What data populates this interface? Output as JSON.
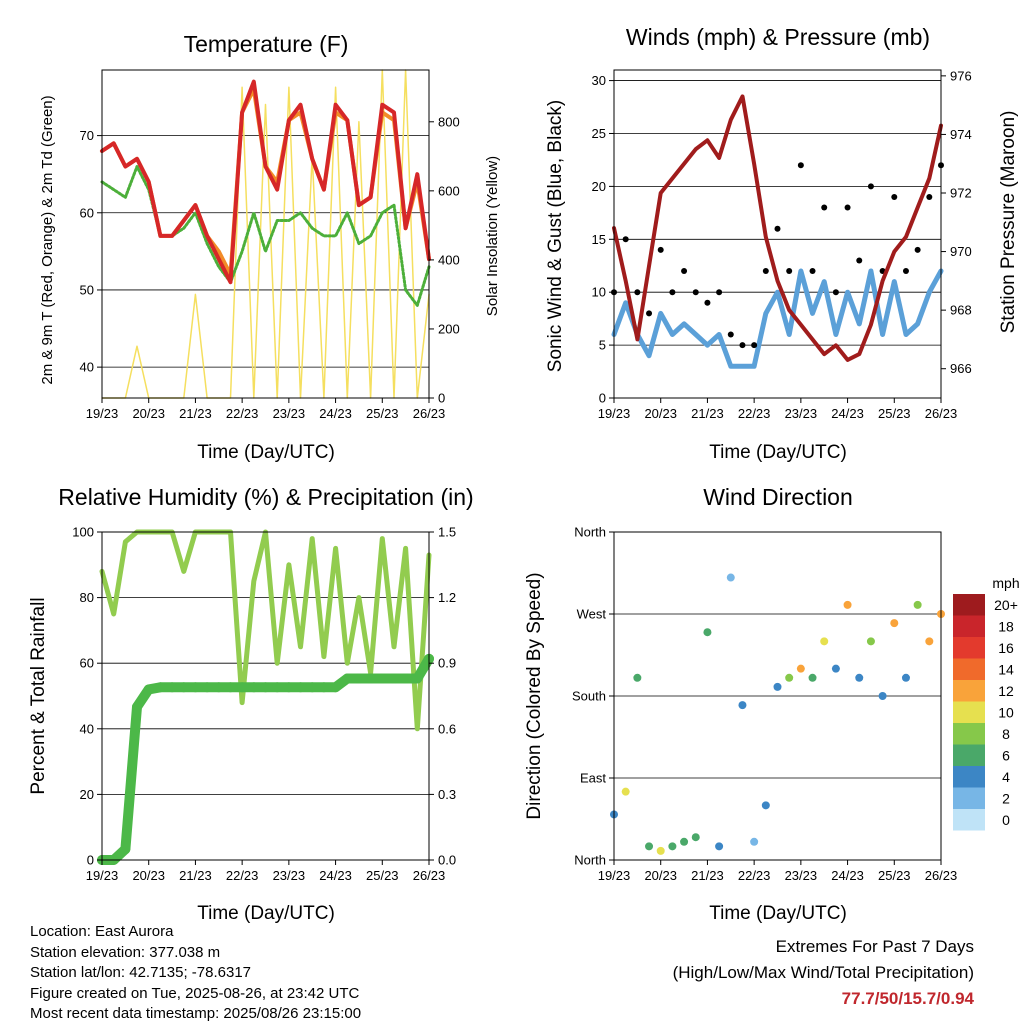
{
  "info": {
    "location": "Location: East Aurora",
    "elevation": "Station elevation: 377.038 m",
    "latlon": "Station lat/lon: 42.7135; -78.6317",
    "created": "Figure created on Tue, 2025-08-26, at 23:42 UTC",
    "timestamp": "Most recent data timestamp: 2025/08/26 23:15:00"
  },
  "extremes": {
    "line1": "Extremes For Past 7 Days",
    "line2": "(High/Low/Max Wind/Total Precipitation)",
    "values": "77.7/50/15.7/0.94"
  },
  "colors": {
    "t2m": "#d62728",
    "t9m": "#f28c28",
    "td": "#4caf3a",
    "solar": "#f5df5f",
    "wind": "#5ba0d8",
    "gust": "#000000",
    "pressure": "#a01c1c",
    "rh": "#92cc4f",
    "precip": "#4cb848"
  },
  "chart_data": [
    {
      "type": "line",
      "title": "Temperature (F)",
      "xlabel": "Time (Day/UTC)",
      "ylabel": "2m & 9m T (Red, Orange) & 2m Td (Green)",
      "ylabel_right": "Solar Insolation (Yellow)",
      "x_ticks": [
        "19/23",
        "20/23",
        "21/23",
        "22/23",
        "23/23",
        "24/23",
        "25/23",
        "26/23"
      ],
      "ylim": [
        36,
        78.5
      ],
      "y_ticks": [
        40,
        50,
        60,
        70
      ],
      "ylim_right": [
        0,
        950
      ],
      "y_ticks_right": [
        0,
        200,
        400,
        600,
        800
      ],
      "grid": true,
      "x": [
        0,
        0.25,
        0.5,
        0.75,
        1,
        1.25,
        1.5,
        1.75,
        2,
        2.25,
        2.5,
        2.75,
        3,
        3.25,
        3.5,
        3.75,
        4,
        4.25,
        4.5,
        4.75,
        5,
        5.25,
        5.5,
        5.75,
        6,
        6.25,
        6.5,
        6.75,
        7
      ],
      "series": [
        {
          "values": [
            68,
            69,
            66,
            67,
            64,
            57,
            57,
            59,
            61,
            57,
            54,
            51,
            73,
            77,
            66,
            63,
            72,
            74,
            67,
            63,
            74,
            72,
            61,
            62,
            74,
            73,
            58,
            65,
            54
          ]
        },
        {
          "values": [
            68,
            69,
            66,
            67,
            64,
            57,
            57,
            59,
            61,
            57,
            55,
            52,
            73,
            76,
            66,
            64,
            72,
            73,
            67,
            63,
            73,
            72,
            61,
            62,
            73,
            72,
            58,
            64,
            54
          ]
        },
        {
          "values": [
            64,
            63,
            62,
            66,
            63,
            57,
            57,
            58,
            60,
            56,
            53,
            51,
            55,
            60,
            55,
            59,
            59,
            60,
            58,
            57,
            57,
            60,
            56,
            57,
            60,
            61,
            50,
            48,
            53
          ]
        },
        {
          "values": [
            0,
            0,
            0,
            150,
            0,
            0,
            0,
            0,
            300,
            0,
            0,
            0,
            900,
            0,
            850,
            0,
            900,
            0,
            700,
            0,
            900,
            0,
            800,
            0,
            950,
            0,
            950,
            0,
            300
          ]
        }
      ]
    },
    {
      "type": "scatter",
      "title": "Winds (mph) & Pressure (mb)",
      "xlabel": "Time (Day/UTC)",
      "ylabel": "Sonic Wind & Gust (Blue, Black)",
      "ylabel_right": "Station Pressure (Maroon)",
      "x_ticks": [
        "19/23",
        "20/23",
        "21/23",
        "22/23",
        "23/23",
        "24/23",
        "25/23",
        "26/23"
      ],
      "ylim": [
        0,
        31
      ],
      "y_ticks": [
        0,
        5,
        10,
        15,
        20,
        25,
        30
      ],
      "ylim_right": [
        965,
        976.2
      ],
      "y_ticks_right": [
        966,
        968,
        970,
        972,
        974,
        976
      ],
      "grid": true,
      "x": [
        0,
        0.25,
        0.5,
        0.75,
        1,
        1.25,
        1.5,
        1.75,
        2,
        2.25,
        2.5,
        2.75,
        3,
        3.25,
        3.5,
        3.75,
        4,
        4.25,
        4.5,
        4.75,
        5,
        5.25,
        5.5,
        5.75,
        6,
        6.25,
        6.5,
        6.75,
        7
      ],
      "series": [
        {
          "values": [
            6,
            9,
            6,
            4,
            8,
            6,
            7,
            6,
            5,
            6,
            3,
            3,
            3,
            8,
            10,
            6,
            12,
            8,
            11,
            6,
            10,
            7,
            12,
            6,
            11,
            6,
            7,
            10,
            12
          ]
        },
        {
          "values": [
            10,
            15,
            10,
            8,
            14,
            10,
            12,
            10,
            9,
            10,
            6,
            5,
            5,
            12,
            16,
            12,
            22,
            12,
            18,
            10,
            18,
            13,
            20,
            12,
            19,
            12,
            14,
            19,
            22
          ]
        },
        {
          "values": [
            970.8,
            969,
            967,
            969.5,
            972,
            972.5,
            973,
            973.5,
            973.8,
            973.2,
            974.5,
            975.3,
            973,
            970.5,
            969,
            968,
            967.5,
            967,
            966.5,
            966.8,
            966.3,
            966.5,
            967.5,
            969,
            970,
            970.5,
            971.5,
            972.5,
            974.3
          ]
        }
      ]
    },
    {
      "type": "line",
      "title": "Relative Humidity (%) & Precipitation (in)",
      "xlabel": "Time (Day/UTC)",
      "ylabel": "Percent & Total Rainfall",
      "x_ticks": [
        "19/23",
        "20/23",
        "21/23",
        "22/23",
        "23/23",
        "24/23",
        "25/23",
        "26/23"
      ],
      "ylim": [
        0,
        100
      ],
      "y_ticks": [
        0,
        20,
        40,
        60,
        80,
        100
      ],
      "ylim_right": [
        0,
        1.5
      ],
      "y_ticks_right": [
        "0.0",
        "0.3",
        "0.6",
        "0.9",
        "1.2",
        "1.5"
      ],
      "grid": true,
      "x": [
        0,
        0.25,
        0.5,
        0.75,
        1,
        1.25,
        1.5,
        1.75,
        2,
        2.25,
        2.5,
        2.75,
        3,
        3.25,
        3.5,
        3.75,
        4,
        4.25,
        4.5,
        4.75,
        5,
        5.25,
        5.5,
        5.75,
        6,
        6.25,
        6.5,
        6.75,
        7
      ],
      "series": [
        {
          "values": [
            88,
            75,
            97,
            100,
            100,
            100,
            100,
            88,
            100,
            100,
            100,
            100,
            48,
            85,
            100,
            60,
            90,
            65,
            98,
            62,
            95,
            60,
            80,
            57,
            98,
            65,
            95,
            40,
            93
          ]
        },
        {
          "values": [
            0,
            0,
            0.05,
            0.7,
            0.78,
            0.79,
            0.79,
            0.79,
            0.79,
            0.79,
            0.79,
            0.79,
            0.79,
            0.79,
            0.79,
            0.79,
            0.79,
            0.79,
            0.79,
            0.79,
            0.79,
            0.83,
            0.83,
            0.83,
            0.83,
            0.83,
            0.83,
            0.83,
            0.92
          ]
        }
      ]
    },
    {
      "type": "scatter",
      "title": "Wind Direction",
      "xlabel": "Time (Day/UTC)",
      "ylabel": "Direction (Colored By Speed)",
      "x_ticks": [
        "19/23",
        "20/23",
        "21/23",
        "22/23",
        "23/23",
        "24/23",
        "25/23",
        "26/23"
      ],
      "ylim": [
        0,
        360
      ],
      "y_ticks": [
        "North",
        "East",
        "South",
        "West",
        "North"
      ],
      "grid": true,
      "colorbar": {
        "title": "mph",
        "labels": [
          "20+",
          "18",
          "16",
          "14",
          "12",
          "10",
          "8",
          "6",
          "4",
          "2",
          "0"
        ],
        "colors": [
          "#9e1b1e",
          "#c9252b",
          "#e33a2d",
          "#f06a2b",
          "#f9a33a",
          "#e6e04f",
          "#86c84a",
          "#4aa869",
          "#3c86c5",
          "#77b6e6",
          "#bfe3f7"
        ]
      },
      "x": [
        0,
        0.25,
        0.5,
        0.75,
        1,
        1.25,
        1.5,
        1.75,
        2,
        2.25,
        2.5,
        2.75,
        3,
        3.25,
        3.5,
        3.75,
        4,
        4.25,
        4.5,
        4.75,
        5,
        5.25,
        5.5,
        5.75,
        6,
        6.25,
        6.5,
        6.75,
        7
      ],
      "series": [
        {
          "values": [
            50,
            75,
            200,
            15,
            10,
            15,
            20,
            25,
            250,
            15,
            310,
            170,
            20,
            60,
            190,
            200,
            210,
            200,
            240,
            210,
            280,
            200,
            240,
            180,
            260,
            200,
            280,
            240,
            270
          ]
        },
        {
          "values": [
            4,
            10,
            6,
            6,
            9,
            5,
            5,
            6,
            5,
            3,
            2,
            3,
            2,
            4,
            4,
            7,
            12,
            5,
            9,
            4,
            11,
            4,
            8,
            4,
            12,
            4,
            8,
            11,
            12
          ]
        }
      ]
    }
  ]
}
